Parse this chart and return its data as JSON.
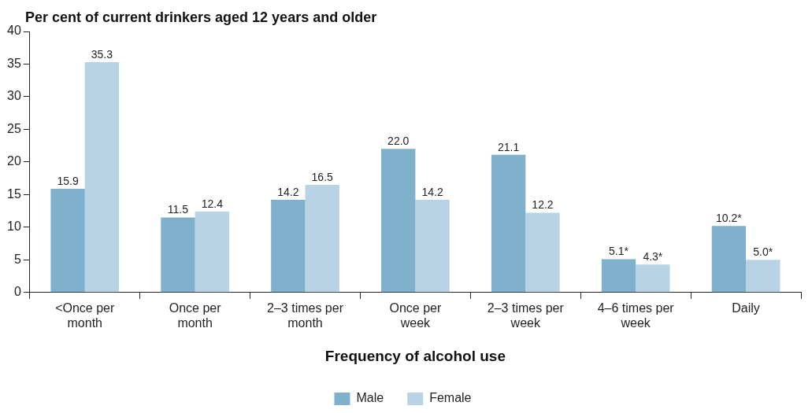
{
  "chart_data": {
    "type": "bar",
    "ylabel": "Per cent of current drinkers aged 12 years and older",
    "xlabel": "Frequency of alcohol use",
    "categories": [
      "<Once per month",
      "Once per month",
      "2–3 times per month",
      "Once per week",
      "2–3 times per week",
      "4–6 times per week",
      "Daily"
    ],
    "series": [
      {
        "name": "Male",
        "color": "#7fb0cc",
        "values": [
          15.9,
          11.5,
          14.2,
          22.0,
          21.1,
          5.1,
          10.2
        ],
        "value_labels": [
          "15.9",
          "11.5",
          "14.2",
          "22.0",
          "21.1",
          "5.1*",
          "10.2*"
        ]
      },
      {
        "name": "Female",
        "color": "#b8d3e5",
        "values": [
          35.3,
          12.4,
          16.5,
          14.2,
          12.2,
          4.3,
          5.0
        ],
        "value_labels": [
          "35.3",
          "12.4",
          "16.5",
          "14.2",
          "12.2",
          "4.3*",
          "5.0*"
        ]
      }
    ],
    "ylim": [
      0,
      40
    ],
    "yticks": [
      0,
      5,
      10,
      15,
      20,
      25,
      30,
      35,
      40
    ],
    "grid": false,
    "legend": "bottom"
  }
}
